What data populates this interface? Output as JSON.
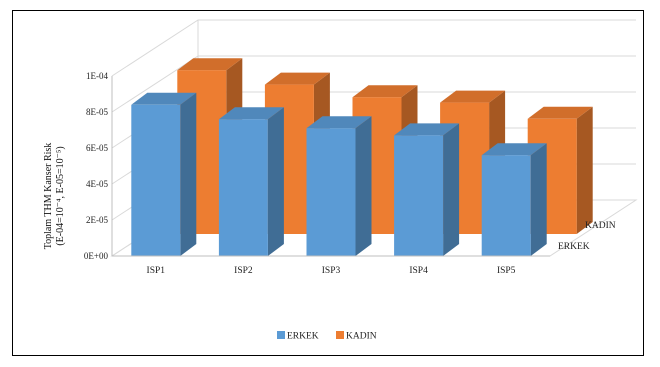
{
  "chart_data": {
    "type": "bar",
    "style": "3d-clustered-depth",
    "categories": [
      "ISP1",
      "ISP2",
      "ISP3",
      "ISP4",
      "ISP5"
    ],
    "series": [
      {
        "name": "ERKEK",
        "color": "#5B9BD5",
        "values": [
          8.4e-05,
          7.6e-05,
          7.1e-05,
          6.7e-05,
          5.6e-05
        ]
      },
      {
        "name": "KADIN",
        "color": "#ED7D31",
        "values": [
          9.1e-05,
          8.3e-05,
          7.6e-05,
          7.3e-05,
          6.4e-05
        ]
      }
    ],
    "ylabel_line1": "Toplam THM Kanser Risk",
    "ylabel_line2": "(E-04=10⁻⁴, E-05=10⁻⁵)",
    "yticks": [
      "0E+00",
      "2E-05",
      "4E-05",
      "6E-05",
      "8E-05",
      "1E-04"
    ],
    "ylim": [
      0,
      0.0001
    ],
    "grid": true,
    "legend": "bottom-center"
  }
}
